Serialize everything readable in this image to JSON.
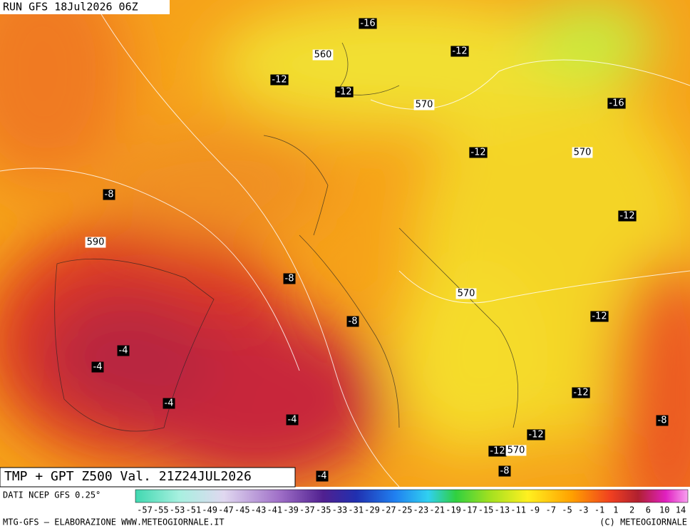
{
  "header": {
    "run": "RUN GFS 18Jul2026 06Z"
  },
  "map": {
    "labels": [
      "-16",
      "560",
      "-12",
      "-12",
      "-12",
      "570",
      "-16",
      "-12",
      "570",
      "-8",
      "-12",
      "590",
      "-8",
      "570",
      "-8",
      "-12",
      "-4",
      "-4",
      "-12",
      "-4",
      "-4",
      "-8",
      "-12",
      "-12",
      "570",
      "-8",
      "-4"
    ]
  },
  "footer": {
    "title": "TMP + GPT Z500 Val. 21Z24JUL2026",
    "source": "DATI NCEP GFS 0.25°",
    "credit": "MTG-GFS — ELABORAZIONE WWW.METEOGIORNALE.IT",
    "copyright": "(C) METEOGIORNALE"
  },
  "colorbar": {
    "ticks": [
      -57,
      -55,
      -53,
      -51,
      -49,
      -47,
      -45,
      -43,
      -41,
      -39,
      -37,
      -35,
      -33,
      -31,
      -29,
      -27,
      -25,
      -23,
      -21,
      -19,
      -17,
      -15,
      -13,
      -11,
      -9,
      -7,
      -5,
      -3,
      -1,
      1,
      2,
      6,
      10,
      14
    ]
  }
}
